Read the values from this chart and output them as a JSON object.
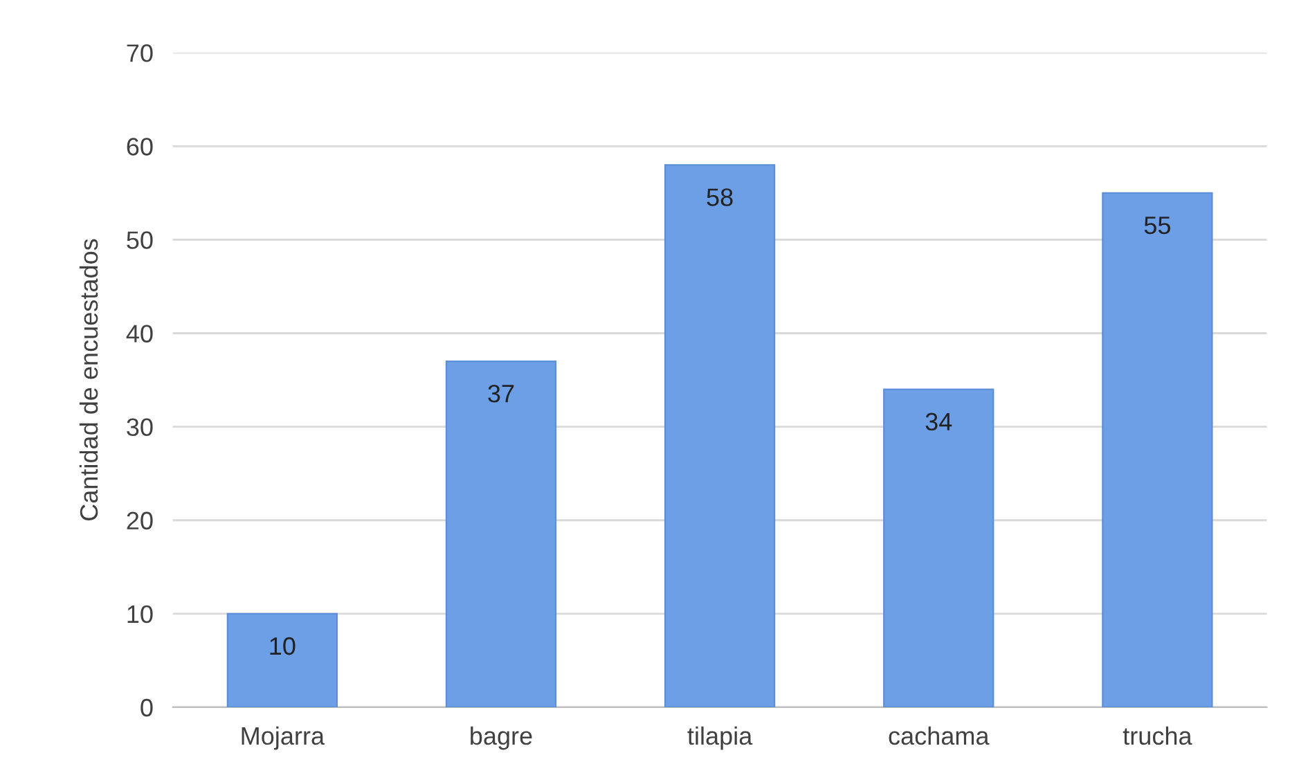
{
  "chart_data": {
    "type": "bar",
    "ylabel": "Cantidad de encuestados",
    "categories": [
      "Mojarra",
      "bagre",
      "tilapia",
      "cachama",
      "trucha"
    ],
    "values": [
      10,
      37,
      58,
      34,
      55
    ],
    "color": "#6c9fe6",
    "ylim": [
      0,
      70
    ],
    "yticks": [
      0,
      10,
      20,
      30,
      40,
      50,
      60,
      70
    ],
    "grid": "y",
    "data_labels": true
  }
}
